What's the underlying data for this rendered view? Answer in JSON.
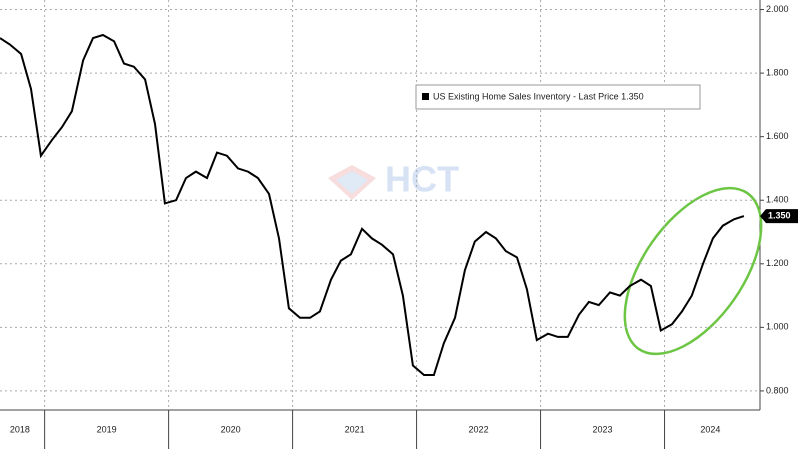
{
  "chart_data": {
    "type": "line",
    "watermark": "HCT",
    "series": [
      {
        "name": "US Existing Home Sales Inventory - Last Price 1.350",
        "color": "#000000",
        "x": [
          2018.64,
          2018.72,
          2018.81,
          2018.89,
          2018.97,
          2019.06,
          2019.14,
          2019.22,
          2019.31,
          2019.39,
          2019.47,
          2019.56,
          2019.64,
          2019.72,
          2019.81,
          2019.89,
          2019.97,
          2020.06,
          2020.14,
          2020.22,
          2020.31,
          2020.39,
          2020.47,
          2020.56,
          2020.64,
          2020.72,
          2020.81,
          2020.89,
          2020.97,
          2021.06,
          2021.14,
          2021.22,
          2021.31,
          2021.39,
          2021.47,
          2021.56,
          2021.64,
          2021.72,
          2021.81,
          2021.89,
          2021.97,
          2022.06,
          2022.14,
          2022.22,
          2022.31,
          2022.39,
          2022.47,
          2022.56,
          2022.64,
          2022.72,
          2022.81,
          2022.89,
          2022.97,
          2023.06,
          2023.14,
          2023.22,
          2023.31,
          2023.39,
          2023.47,
          2023.56,
          2023.64,
          2023.72,
          2023.81,
          2023.89,
          2023.97,
          2024.06,
          2024.14,
          2024.22,
          2024.31,
          2024.39,
          2024.47,
          2024.56,
          2024.64
        ],
        "values": [
          1.91,
          1.89,
          1.86,
          1.75,
          1.54,
          1.59,
          1.63,
          1.68,
          1.84,
          1.91,
          1.92,
          1.9,
          1.83,
          1.82,
          1.78,
          1.64,
          1.39,
          1.4,
          1.47,
          1.49,
          1.47,
          1.55,
          1.54,
          1.5,
          1.49,
          1.47,
          1.42,
          1.28,
          1.06,
          1.03,
          1.03,
          1.05,
          1.15,
          1.21,
          1.23,
          1.31,
          1.28,
          1.26,
          1.23,
          1.1,
          0.88,
          0.85,
          0.85,
          0.95,
          1.03,
          1.18,
          1.27,
          1.3,
          1.28,
          1.24,
          1.22,
          1.12,
          0.96,
          0.98,
          0.97,
          0.97,
          1.04,
          1.08,
          1.07,
          1.11,
          1.1,
          1.13,
          1.15,
          1.13,
          0.99,
          1.01,
          1.05,
          1.1,
          1.2,
          1.28,
          1.32,
          1.34,
          1.35
        ]
      }
    ],
    "last_price": {
      "value": 1.35,
      "label": "1.350"
    },
    "xlim": [
      2018.64,
      2024.77
    ],
    "xticks": [
      2019,
      2020,
      2021,
      2022,
      2023,
      2024
    ],
    "xtick_labels": [
      {
        "value": 2018.8,
        "label": "2018"
      },
      {
        "value": 2019.5,
        "label": "2019"
      },
      {
        "value": 2020.5,
        "label": "2020"
      },
      {
        "value": 2021.5,
        "label": "2021"
      },
      {
        "value": 2022.5,
        "label": "2022"
      },
      {
        "value": 2023.5,
        "label": "2023"
      },
      {
        "value": 2024.37,
        "label": "2024"
      }
    ],
    "ylim": [
      0.74,
      2.03
    ],
    "yticks": [
      {
        "value": 0.8,
        "label": "0.800"
      },
      {
        "value": 1.0,
        "label": "1.000"
      },
      {
        "value": 1.2,
        "label": "1.200"
      },
      {
        "value": 1.4,
        "label": "1.400"
      },
      {
        "value": 1.6,
        "label": "1.600"
      },
      {
        "value": 1.8,
        "label": "1.800"
      },
      {
        "value": 2.0,
        "label": "2.000"
      }
    ],
    "grid": true
  }
}
